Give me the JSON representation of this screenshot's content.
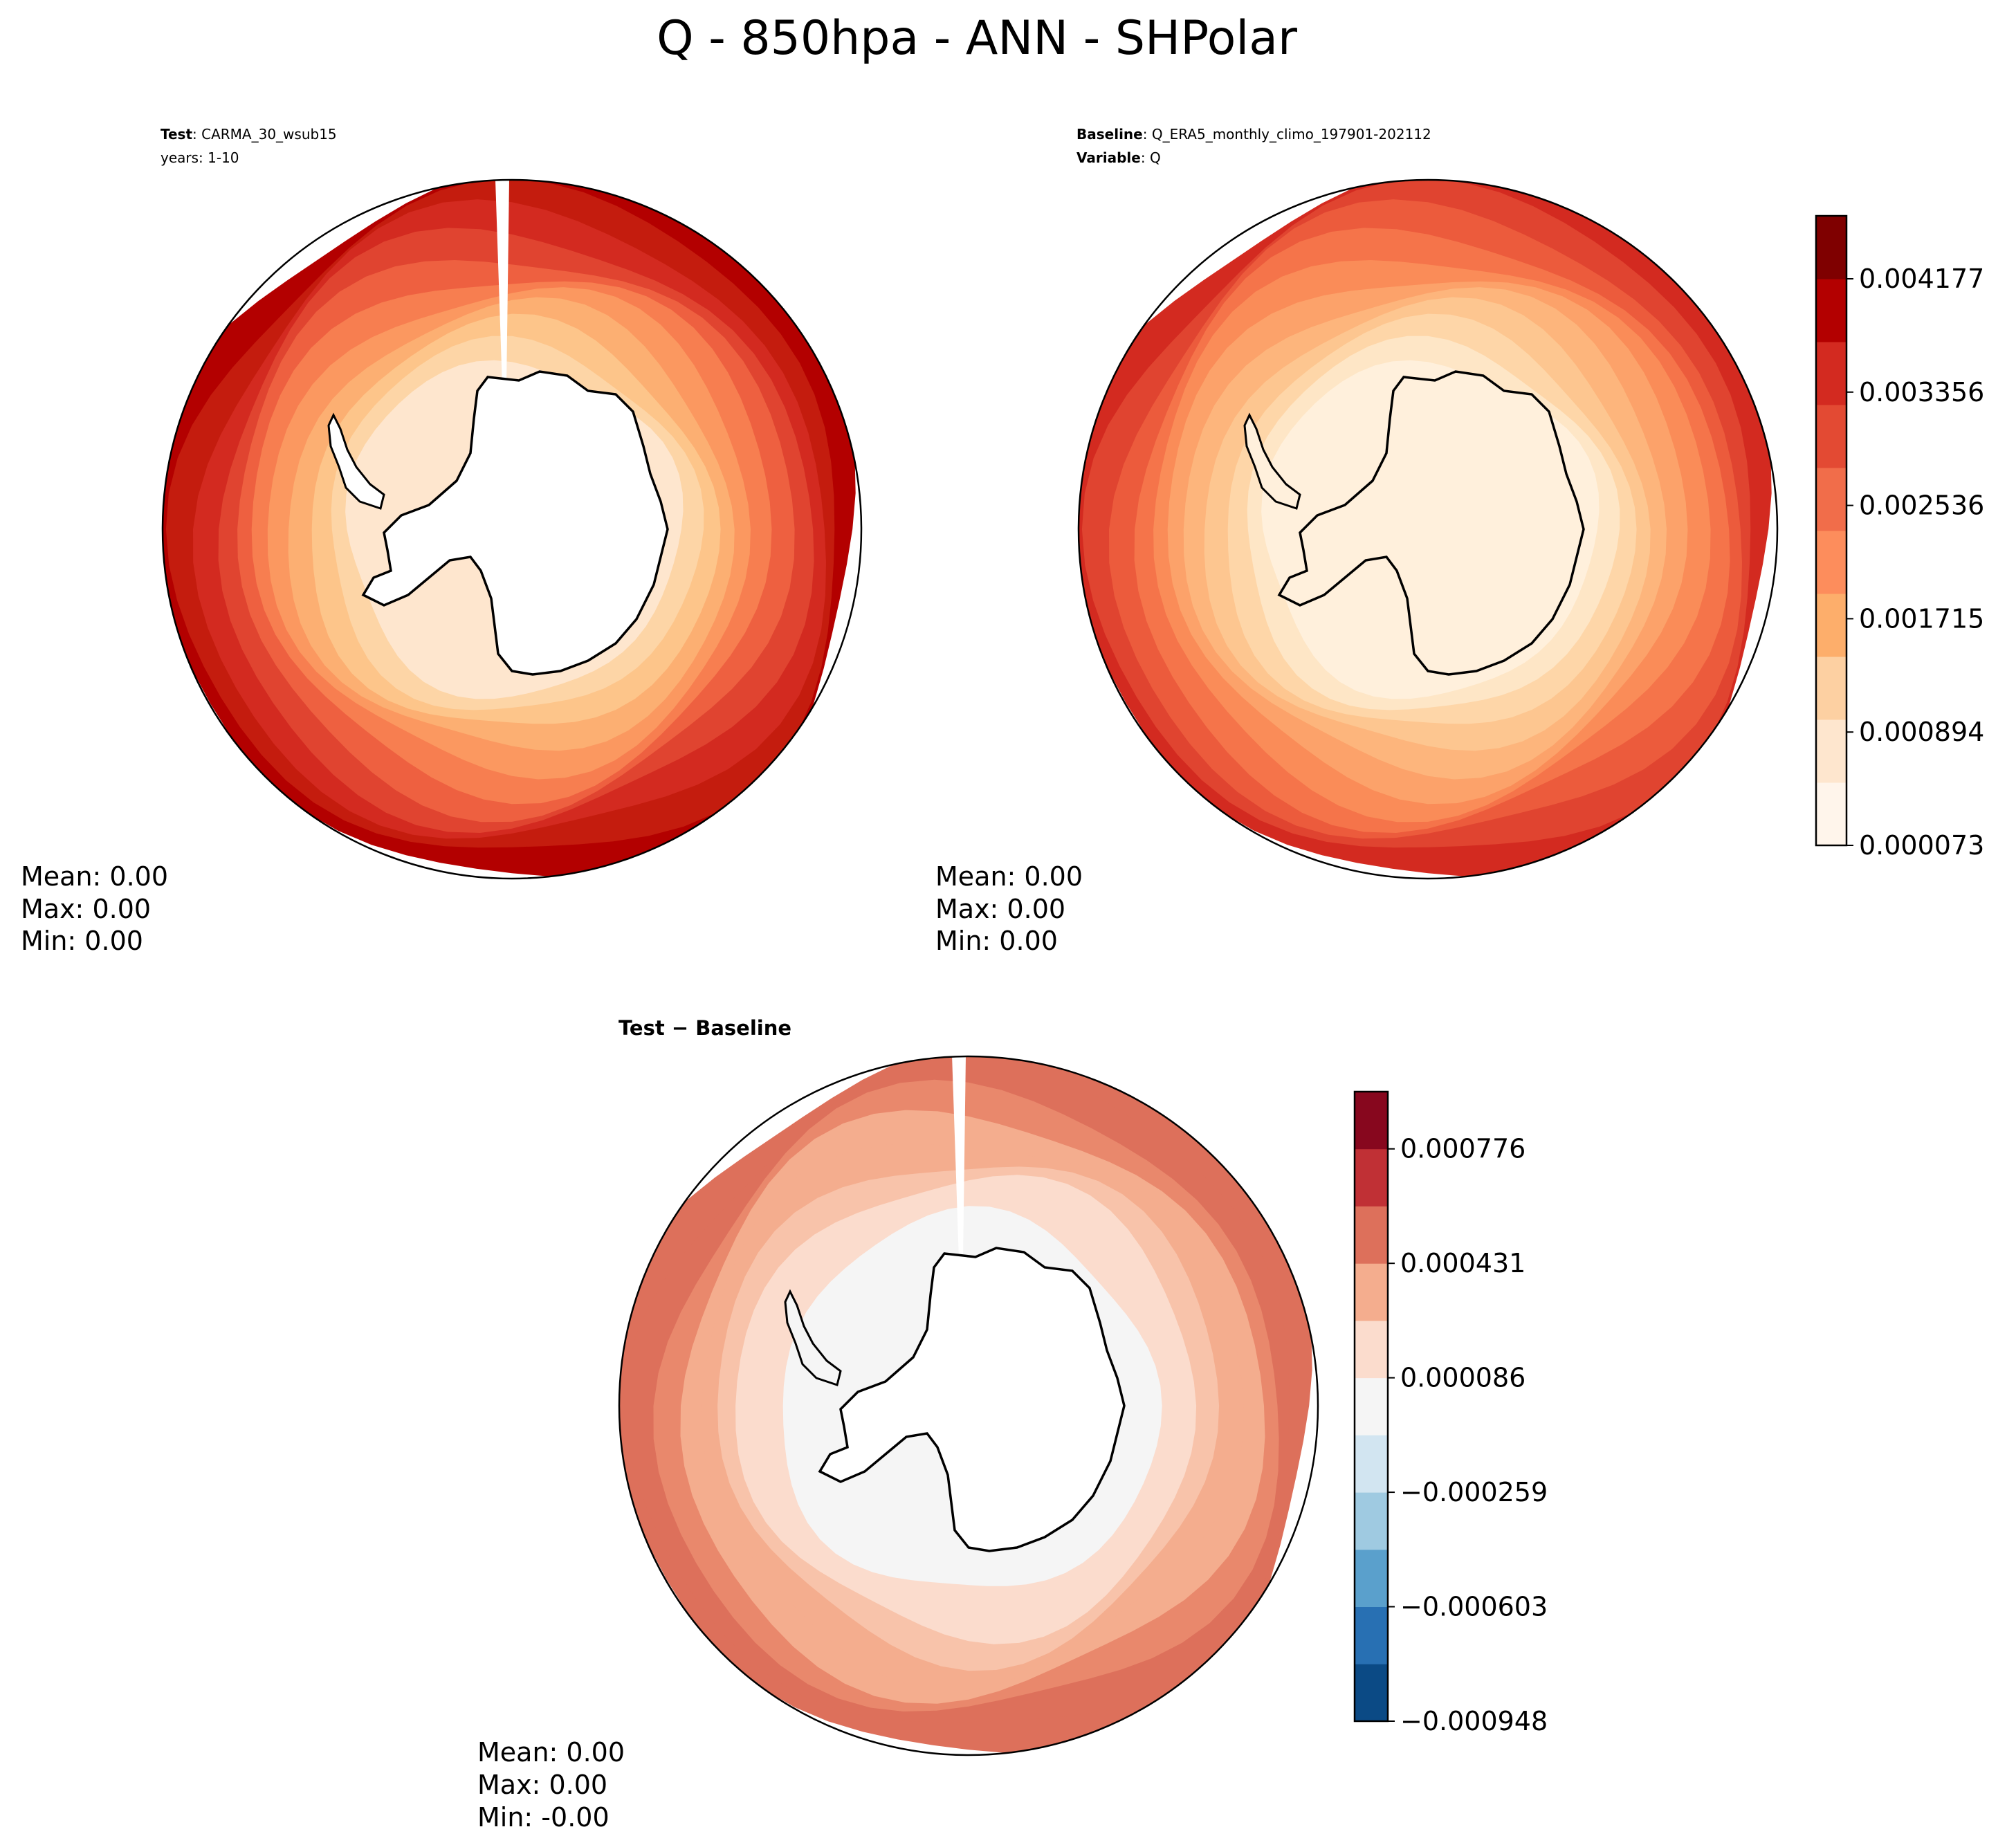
{
  "figure": {
    "title": "Q - 850hpa - ANN - SHPolar"
  },
  "panels": [
    {
      "id": "test",
      "label_lines": [
        {
          "bold": "Test",
          "rest": ": CARMA_30_wsub15"
        },
        {
          "bold": "",
          "rest": "years: 1-10"
        }
      ],
      "stats": [
        "Mean:  0.00",
        "Max:  0.00",
        "Min:  0.00"
      ],
      "colorscale": "abs"
    },
    {
      "id": "baseline",
      "label_lines": [
        {
          "bold": "Baseline",
          "rest": ": Q_ERA5_monthly_climo_197901-202112"
        },
        {
          "bold": "Variable",
          "rest": ": Q"
        }
      ],
      "stats": [
        "Mean:  0.00",
        "Max:  0.00",
        "Min:  0.00"
      ],
      "colorscale": "abs"
    },
    {
      "id": "diff",
      "label_lines": [
        {
          "bold": "Test − Baseline",
          "rest": ""
        }
      ],
      "stats": [
        "Mean:  0.00",
        "Max:  0.00",
        "Min: -0.00"
      ],
      "colorscale": "diff"
    }
  ],
  "colorbars": {
    "abs": {
      "tick_labels": [
        "0.004177",
        "0.003356",
        "0.002536",
        "0.001715",
        "0.000894",
        "0.000073"
      ],
      "colors": [
        "#fff5eb",
        "#fee6ce",
        "#fdd0a2",
        "#fdae6b",
        "#fd8d5c",
        "#f16d4a",
        "#e34a33",
        "#d32a20",
        "#b30000",
        "#7f0000"
      ]
    },
    "diff": {
      "tick_labels": [
        "0.000776",
        "0.000431",
        "0.000086",
        "−0.000259",
        "−0.000603",
        "−0.000948"
      ],
      "colors": [
        "#0b4a85",
        "#2870b3",
        "#5aa0cc",
        "#9fcae1",
        "#d2e5f1",
        "#f5f5f5",
        "#fbdccd",
        "#f4ad8e",
        "#dd705b",
        "#c03035",
        "#87071e"
      ]
    }
  },
  "map_fill": {
    "test": {
      "rings": [
        "#b30000",
        "#c41c0e",
        "#d32a20",
        "#e04430",
        "#ee6040",
        "#f77e50",
        "#fb9860",
        "#fcaf72",
        "#fdc58a",
        "#fdd5a6",
        "#fee6ce"
      ]
    },
    "baseline": {
      "rings": [
        "#d32a20",
        "#e04430",
        "#ec5b3c",
        "#f5744a",
        "#fa8c58",
        "#fca26a",
        "#fdb57c",
        "#fdc690",
        "#fed6a8",
        "#fee6c6",
        "#fff0dc"
      ]
    },
    "diff": {
      "rings": [
        "#dd705b",
        "#dd705b",
        "#e9886c",
        "#f4ad8e",
        "#f4ad8e",
        "#f8c3aa",
        "#fbdccd",
        "#fbdccd",
        "#f5f5f5",
        "#f5f5f5"
      ]
    }
  }
}
